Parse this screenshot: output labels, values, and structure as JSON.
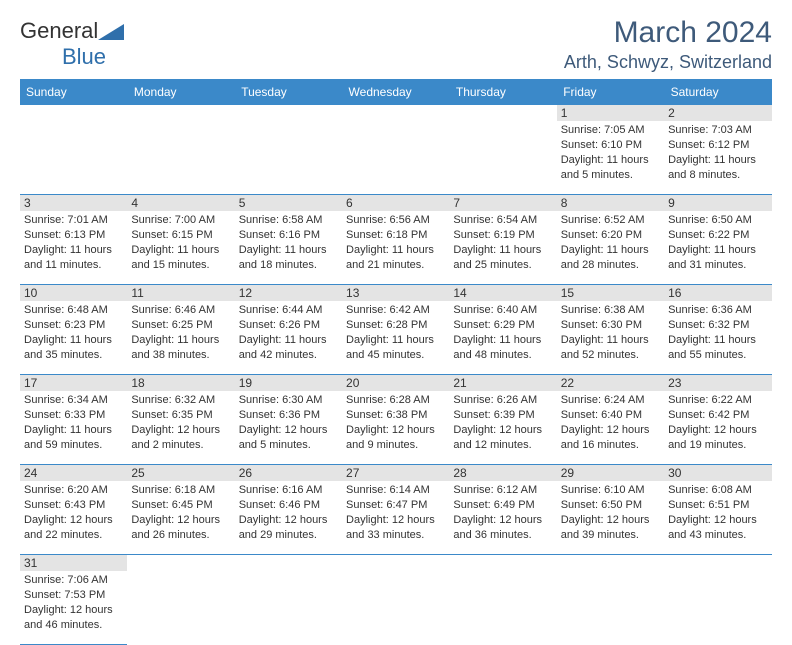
{
  "logo": {
    "text1": "General",
    "text2": "Blue",
    "flag_color": "#2f6fab"
  },
  "title": "March 2024",
  "location": "Arth, Schwyz, Switzerland",
  "header_bg": "#3b89c9",
  "days": [
    "Sunday",
    "Monday",
    "Tuesday",
    "Wednesday",
    "Thursday",
    "Friday",
    "Saturday"
  ],
  "weeks": [
    [
      null,
      null,
      null,
      null,
      null,
      {
        "n": "1",
        "sr": "Sunrise: 7:05 AM",
        "ss": "Sunset: 6:10 PM",
        "dl1": "Daylight: 11 hours",
        "dl2": "and 5 minutes."
      },
      {
        "n": "2",
        "sr": "Sunrise: 7:03 AM",
        "ss": "Sunset: 6:12 PM",
        "dl1": "Daylight: 11 hours",
        "dl2": "and 8 minutes."
      }
    ],
    [
      {
        "n": "3",
        "sr": "Sunrise: 7:01 AM",
        "ss": "Sunset: 6:13 PM",
        "dl1": "Daylight: 11 hours",
        "dl2": "and 11 minutes."
      },
      {
        "n": "4",
        "sr": "Sunrise: 7:00 AM",
        "ss": "Sunset: 6:15 PM",
        "dl1": "Daylight: 11 hours",
        "dl2": "and 15 minutes."
      },
      {
        "n": "5",
        "sr": "Sunrise: 6:58 AM",
        "ss": "Sunset: 6:16 PM",
        "dl1": "Daylight: 11 hours",
        "dl2": "and 18 minutes."
      },
      {
        "n": "6",
        "sr": "Sunrise: 6:56 AM",
        "ss": "Sunset: 6:18 PM",
        "dl1": "Daylight: 11 hours",
        "dl2": "and 21 minutes."
      },
      {
        "n": "7",
        "sr": "Sunrise: 6:54 AM",
        "ss": "Sunset: 6:19 PM",
        "dl1": "Daylight: 11 hours",
        "dl2": "and 25 minutes."
      },
      {
        "n": "8",
        "sr": "Sunrise: 6:52 AM",
        "ss": "Sunset: 6:20 PM",
        "dl1": "Daylight: 11 hours",
        "dl2": "and 28 minutes."
      },
      {
        "n": "9",
        "sr": "Sunrise: 6:50 AM",
        "ss": "Sunset: 6:22 PM",
        "dl1": "Daylight: 11 hours",
        "dl2": "and 31 minutes."
      }
    ],
    [
      {
        "n": "10",
        "sr": "Sunrise: 6:48 AM",
        "ss": "Sunset: 6:23 PM",
        "dl1": "Daylight: 11 hours",
        "dl2": "and 35 minutes."
      },
      {
        "n": "11",
        "sr": "Sunrise: 6:46 AM",
        "ss": "Sunset: 6:25 PM",
        "dl1": "Daylight: 11 hours",
        "dl2": "and 38 minutes."
      },
      {
        "n": "12",
        "sr": "Sunrise: 6:44 AM",
        "ss": "Sunset: 6:26 PM",
        "dl1": "Daylight: 11 hours",
        "dl2": "and 42 minutes."
      },
      {
        "n": "13",
        "sr": "Sunrise: 6:42 AM",
        "ss": "Sunset: 6:28 PM",
        "dl1": "Daylight: 11 hours",
        "dl2": "and 45 minutes."
      },
      {
        "n": "14",
        "sr": "Sunrise: 6:40 AM",
        "ss": "Sunset: 6:29 PM",
        "dl1": "Daylight: 11 hours",
        "dl2": "and 48 minutes."
      },
      {
        "n": "15",
        "sr": "Sunrise: 6:38 AM",
        "ss": "Sunset: 6:30 PM",
        "dl1": "Daylight: 11 hours",
        "dl2": "and 52 minutes."
      },
      {
        "n": "16",
        "sr": "Sunrise: 6:36 AM",
        "ss": "Sunset: 6:32 PM",
        "dl1": "Daylight: 11 hours",
        "dl2": "and 55 minutes."
      }
    ],
    [
      {
        "n": "17",
        "sr": "Sunrise: 6:34 AM",
        "ss": "Sunset: 6:33 PM",
        "dl1": "Daylight: 11 hours",
        "dl2": "and 59 minutes."
      },
      {
        "n": "18",
        "sr": "Sunrise: 6:32 AM",
        "ss": "Sunset: 6:35 PM",
        "dl1": "Daylight: 12 hours",
        "dl2": "and 2 minutes."
      },
      {
        "n": "19",
        "sr": "Sunrise: 6:30 AM",
        "ss": "Sunset: 6:36 PM",
        "dl1": "Daylight: 12 hours",
        "dl2": "and 5 minutes."
      },
      {
        "n": "20",
        "sr": "Sunrise: 6:28 AM",
        "ss": "Sunset: 6:38 PM",
        "dl1": "Daylight: 12 hours",
        "dl2": "and 9 minutes."
      },
      {
        "n": "21",
        "sr": "Sunrise: 6:26 AM",
        "ss": "Sunset: 6:39 PM",
        "dl1": "Daylight: 12 hours",
        "dl2": "and 12 minutes."
      },
      {
        "n": "22",
        "sr": "Sunrise: 6:24 AM",
        "ss": "Sunset: 6:40 PM",
        "dl1": "Daylight: 12 hours",
        "dl2": "and 16 minutes."
      },
      {
        "n": "23",
        "sr": "Sunrise: 6:22 AM",
        "ss": "Sunset: 6:42 PM",
        "dl1": "Daylight: 12 hours",
        "dl2": "and 19 minutes."
      }
    ],
    [
      {
        "n": "24",
        "sr": "Sunrise: 6:20 AM",
        "ss": "Sunset: 6:43 PM",
        "dl1": "Daylight: 12 hours",
        "dl2": "and 22 minutes."
      },
      {
        "n": "25",
        "sr": "Sunrise: 6:18 AM",
        "ss": "Sunset: 6:45 PM",
        "dl1": "Daylight: 12 hours",
        "dl2": "and 26 minutes."
      },
      {
        "n": "26",
        "sr": "Sunrise: 6:16 AM",
        "ss": "Sunset: 6:46 PM",
        "dl1": "Daylight: 12 hours",
        "dl2": "and 29 minutes."
      },
      {
        "n": "27",
        "sr": "Sunrise: 6:14 AM",
        "ss": "Sunset: 6:47 PM",
        "dl1": "Daylight: 12 hours",
        "dl2": "and 33 minutes."
      },
      {
        "n": "28",
        "sr": "Sunrise: 6:12 AM",
        "ss": "Sunset: 6:49 PM",
        "dl1": "Daylight: 12 hours",
        "dl2": "and 36 minutes."
      },
      {
        "n": "29",
        "sr": "Sunrise: 6:10 AM",
        "ss": "Sunset: 6:50 PM",
        "dl1": "Daylight: 12 hours",
        "dl2": "and 39 minutes."
      },
      {
        "n": "30",
        "sr": "Sunrise: 6:08 AM",
        "ss": "Sunset: 6:51 PM",
        "dl1": "Daylight: 12 hours",
        "dl2": "and 43 minutes."
      }
    ],
    [
      {
        "n": "31",
        "sr": "Sunrise: 7:06 AM",
        "ss": "Sunset: 7:53 PM",
        "dl1": "Daylight: 12 hours",
        "dl2": "and 46 minutes."
      },
      null,
      null,
      null,
      null,
      null,
      null
    ]
  ]
}
